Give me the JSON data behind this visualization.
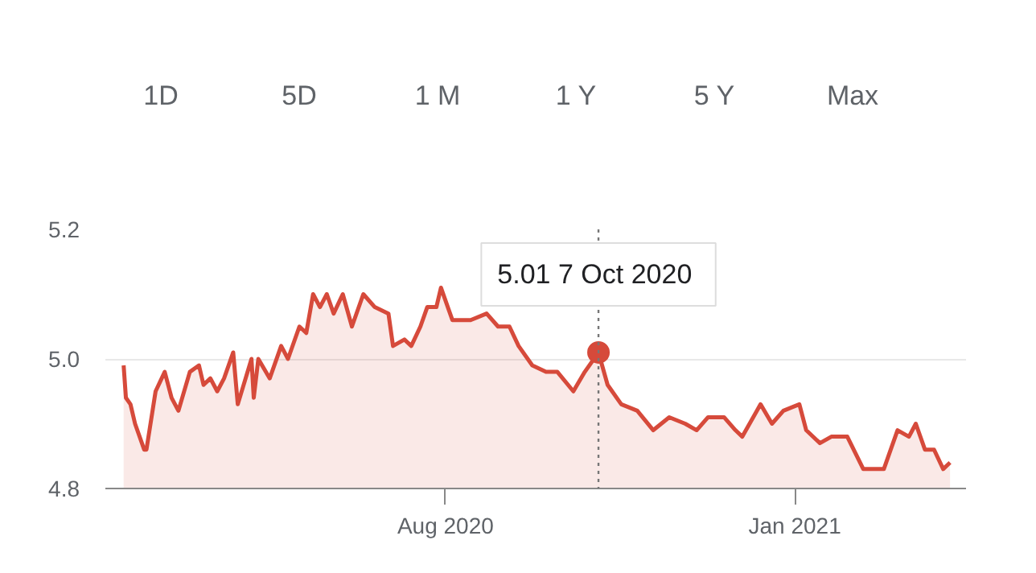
{
  "chart_data": {
    "type": "area",
    "x": [
      "2020-03-13",
      "2020-03-14",
      "2020-03-16",
      "2020-03-18",
      "2020-03-22",
      "2020-03-23",
      "2020-03-27",
      "2020-03-31",
      "2020-04-03",
      "2020-04-06",
      "2020-04-11",
      "2020-04-15",
      "2020-04-17",
      "2020-04-20",
      "2020-04-23",
      "2020-04-26",
      "2020-04-30",
      "2020-05-02",
      "2020-05-08",
      "2020-05-09",
      "2020-05-11",
      "2020-05-16",
      "2020-05-21",
      "2020-05-24",
      "2020-05-29",
      "2020-06-01",
      "2020-06-04",
      "2020-06-07",
      "2020-06-10",
      "2020-06-13",
      "2020-06-17",
      "2020-06-21",
      "2020-06-26",
      "2020-07-01",
      "2020-07-07",
      "2020-07-09",
      "2020-07-14",
      "2020-07-17",
      "2020-07-21",
      "2020-07-24",
      "2020-07-28",
      "2020-07-30",
      "2020-08-02",
      "2020-08-04",
      "2020-08-12",
      "2020-08-19",
      "2020-08-24",
      "2020-08-29",
      "2020-09-02",
      "2020-09-08",
      "2020-09-14",
      "2020-09-19",
      "2020-09-26",
      "2020-10-01",
      "2020-10-07",
      "2020-10-11",
      "2020-10-17",
      "2020-10-24",
      "2020-10-31",
      "2020-11-07",
      "2020-11-14",
      "2020-11-19",
      "2020-11-24",
      "2020-12-01",
      "2020-12-06",
      "2020-12-09",
      "2020-12-17",
      "2020-12-22",
      "2020-12-27",
      "2021-01-03",
      "2021-01-06",
      "2021-01-12",
      "2021-01-17",
      "2021-01-24",
      "2021-01-31",
      "2021-02-09",
      "2021-02-15",
      "2021-02-20",
      "2021-02-23",
      "2021-02-27",
      "2021-03-03",
      "2021-03-07",
      "2021-03-10"
    ],
    "series": [
      {
        "color": "#d64a3b",
        "values": [
          4.99,
          4.94,
          4.93,
          4.9,
          4.86,
          4.86,
          4.95,
          4.98,
          4.94,
          4.92,
          4.98,
          4.99,
          4.96,
          4.97,
          4.95,
          4.97,
          5.01,
          4.93,
          5.0,
          4.94,
          5.0,
          4.97,
          5.02,
          5.0,
          5.05,
          5.04,
          5.1,
          5.08,
          5.1,
          5.07,
          5.1,
          5.05,
          5.1,
          5.08,
          5.07,
          5.02,
          5.03,
          5.02,
          5.05,
          5.08,
          5.08,
          5.11,
          5.08,
          5.06,
          5.06,
          5.07,
          5.05,
          5.05,
          5.02,
          4.99,
          4.98,
          4.98,
          4.95,
          4.98,
          5.01,
          4.96,
          4.93,
          4.92,
          4.89,
          4.91,
          4.9,
          4.89,
          4.91,
          4.91,
          4.89,
          4.88,
          4.93,
          4.9,
          4.92,
          4.93,
          4.89,
          4.87,
          4.88,
          4.88,
          4.83,
          4.83,
          4.89,
          4.88,
          4.9,
          4.86,
          4.86,
          4.83,
          4.84
        ]
      }
    ],
    "xlim": [
      "2020-03-05",
      "2021-03-17"
    ],
    "ylim": [
      4.8,
      5.2
    ],
    "xticks": [
      {
        "value": "2020-08-01",
        "label": "Aug 2020"
      },
      {
        "value": "2021-01-01",
        "label": "Jan 2021"
      }
    ],
    "yticks": [
      4.8,
      {
        "value": 5.0,
        "label": "5.0"
      },
      5.2
    ],
    "grid": "y",
    "ref_lines": [
      {
        "axis": "x",
        "value": "2020-10-07",
        "color": "#777777",
        "line_style": "dotted"
      }
    ],
    "annotations": [
      "1D",
      "5D",
      "1 M",
      "1 Y",
      "5 Y",
      "Max",
      {
        "text": "5.01  7 Oct 2020",
        "x": "2020-10-07",
        "y": 5.01
      }
    ]
  }
}
